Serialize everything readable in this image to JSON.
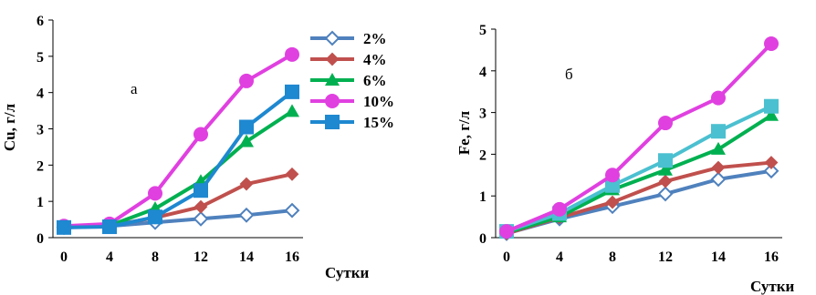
{
  "chart_data": [
    {
      "type": "line",
      "panel_label": "а",
      "ylabel": "Cu, г/л",
      "xlabel": "Сутки",
      "categories": [
        "0",
        "4",
        "8",
        "12",
        "14",
        "16"
      ],
      "yticks": [
        "0",
        "1",
        "2",
        "3",
        "4",
        "5",
        "6"
      ],
      "ylim": [
        0,
        6
      ],
      "grid": false,
      "legend": "right",
      "series": [
        {
          "name": "2%",
          "values": [
            0.28,
            0.32,
            0.42,
            0.52,
            0.62,
            0.75
          ],
          "color": "#4f81bd",
          "marker": "diamond-open"
        },
        {
          "name": "4%",
          "values": [
            0.28,
            0.33,
            0.55,
            0.85,
            1.48,
            1.75
          ],
          "color": "#c0504d",
          "marker": "diamond"
        },
        {
          "name": "6%",
          "values": [
            0.28,
            0.33,
            0.8,
            1.55,
            2.65,
            3.48
          ],
          "color": "#00b050",
          "marker": "triangle"
        },
        {
          "name": "10%",
          "values": [
            0.32,
            0.38,
            1.22,
            2.85,
            4.32,
            5.05
          ],
          "color": "#e040e0",
          "marker": "circle"
        },
        {
          "name": "15%",
          "values": [
            0.28,
            0.3,
            0.57,
            1.3,
            3.05,
            4.02
          ],
          "color": "#1e88d0",
          "marker": "square"
        }
      ]
    },
    {
      "type": "line",
      "panel_label": "б",
      "ylabel": "Fe, г/л",
      "xlabel": "Сутки",
      "categories": [
        "0",
        "4",
        "8",
        "12",
        "14",
        "16"
      ],
      "yticks": [
        "0",
        "1",
        "2",
        "3",
        "4",
        "5"
      ],
      "ylim": [
        0,
        5
      ],
      "grid": false,
      "legend": "none",
      "series": [
        {
          "name": "2%",
          "values": [
            0.1,
            0.45,
            0.75,
            1.05,
            1.4,
            1.6
          ],
          "color": "#4f81bd",
          "marker": "diamond-open"
        },
        {
          "name": "4%",
          "values": [
            0.1,
            0.48,
            0.85,
            1.35,
            1.68,
            1.8
          ],
          "color": "#c0504d",
          "marker": "diamond"
        },
        {
          "name": "6%",
          "values": [
            0.12,
            0.5,
            1.15,
            1.62,
            2.12,
            2.93
          ],
          "color": "#00b050",
          "marker": "triangle"
        },
        {
          "name": "10%",
          "values": [
            0.15,
            0.68,
            1.5,
            2.75,
            3.35,
            4.65
          ],
          "color": "#e040e0",
          "marker": "circle"
        },
        {
          "name": "15%",
          "values": [
            0.15,
            0.58,
            1.25,
            1.85,
            2.55,
            3.15
          ],
          "color": "#4bc0d0",
          "marker": "square"
        }
      ]
    }
  ]
}
